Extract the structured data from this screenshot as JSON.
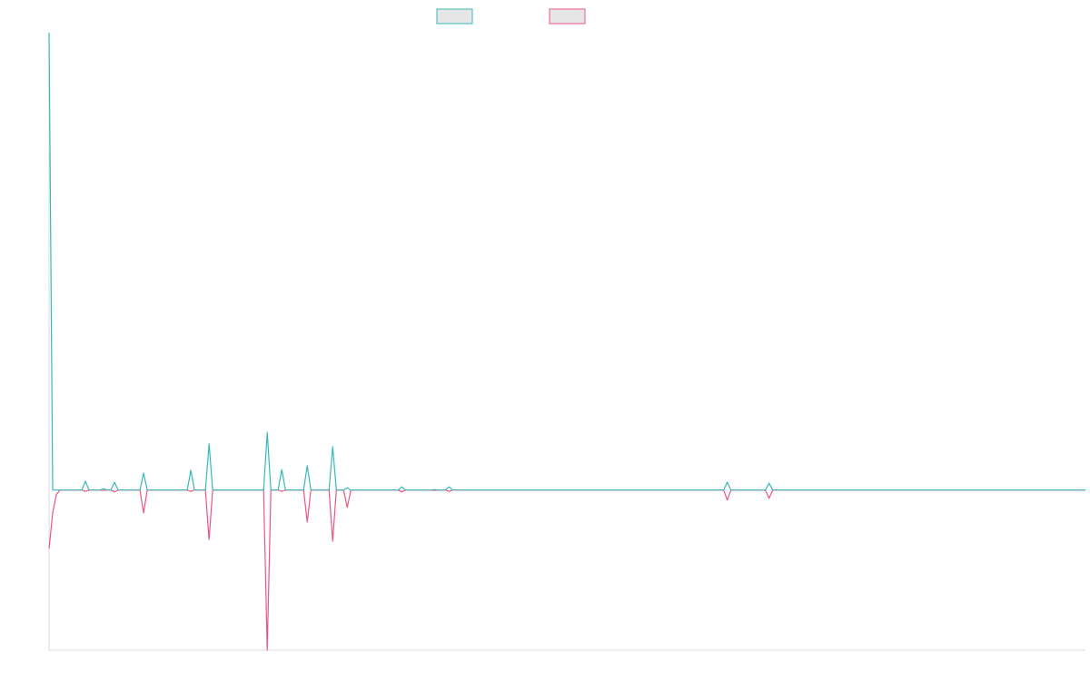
{
  "chart_data": {
    "type": "line",
    "xlim": [
      0,
      285
    ],
    "ylim": [
      -350,
      1000
    ],
    "x": [
      0,
      1,
      2,
      3,
      9,
      10,
      11,
      14,
      15,
      16,
      17,
      18,
      19,
      25,
      26,
      27,
      38,
      39,
      40,
      43,
      44,
      45,
      59,
      60,
      61,
      63,
      64,
      65,
      70,
      71,
      72,
      77,
      78,
      79,
      81,
      82,
      83,
      96,
      97,
      98,
      105,
      106,
      107,
      109,
      110,
      111,
      185.5,
      186.5,
      187.5,
      197,
      198,
      199,
      285
    ],
    "series": [
      {
        "color": "#36b9b9",
        "fill": "#e6e6e6",
        "values": [
          1000,
          0,
          0,
          0,
          0,
          19,
          0,
          0,
          3,
          0,
          0,
          17,
          0,
          0,
          37,
          0,
          0,
          43,
          0,
          0,
          101,
          0,
          0,
          126,
          0,
          0,
          45,
          0,
          0,
          53,
          0,
          0,
          95,
          0,
          0,
          5,
          0,
          0,
          7,
          0,
          0,
          1,
          0,
          0,
          7,
          0,
          0,
          17,
          0,
          0,
          15,
          0,
          0
        ]
      },
      {
        "color": "#f0547e",
        "fill": "#e6e6e6",
        "values": [
          -128,
          -50,
          -10,
          0,
          0,
          -3,
          0,
          0,
          -1,
          0,
          0,
          -4,
          0,
          0,
          -50,
          0,
          0,
          -3,
          0,
          0,
          -108,
          0,
          0,
          -350,
          0,
          0,
          -3,
          0,
          0,
          -70,
          0,
          0,
          -112,
          0,
          0,
          -38,
          0,
          0,
          -4,
          0,
          0,
          -1,
          0,
          0,
          -3,
          0,
          0,
          -22,
          0,
          0,
          -18,
          0,
          0
        ]
      }
    ]
  }
}
